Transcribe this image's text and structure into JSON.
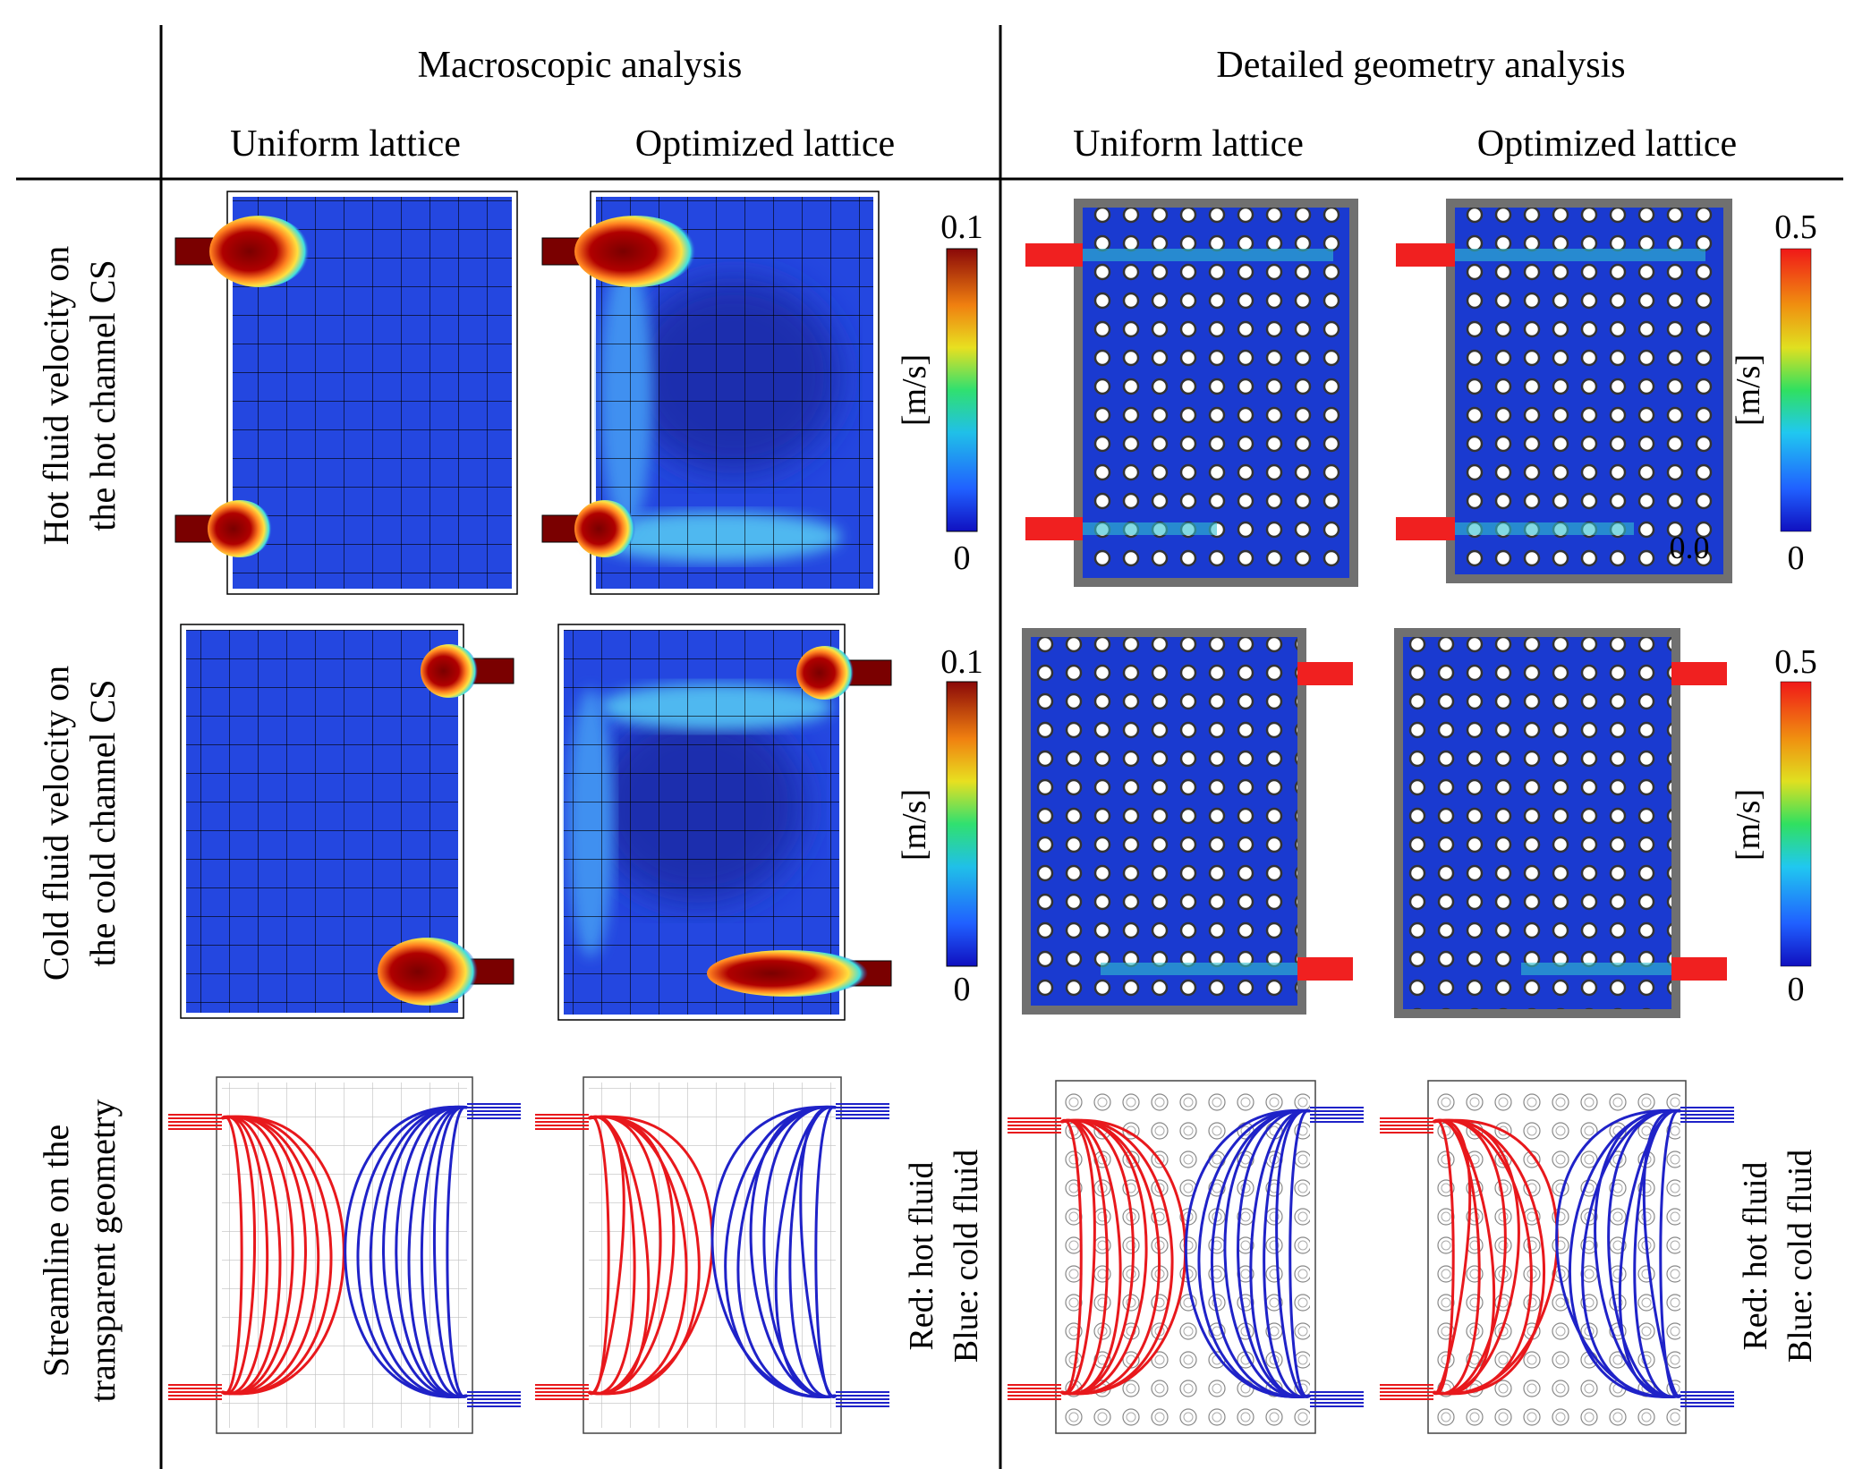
{
  "header": {
    "macro_title": "Macroscopic analysis",
    "detail_title": "Detailed geometry analysis",
    "col_uniform_1": "Uniform lattice",
    "col_optimized_1": "Optimized lattice",
    "col_uniform_2": "Uniform lattice",
    "col_optimized_2": "Optimized lattice"
  },
  "rows": {
    "hot_line1": "Hot fluid velocity on",
    "hot_line2": "the hot channel CS",
    "cold_line1": "Cold fluid velocity on",
    "cold_line2": "the cold channel CS",
    "stream_line1": "Streamline on the",
    "stream_line2": "transparent geometry"
  },
  "colorbars": {
    "macro_hot_max": "0.1",
    "macro_hot_min": "0",
    "macro_hot_unit": "[m/s]",
    "macro_cold_max": "0.1",
    "macro_cold_min": "0",
    "macro_cold_unit": "[m/s]",
    "detail_hot_max": "0.5",
    "detail_hot_min": "0",
    "detail_hot_unit": "[m/s]",
    "detail_cold_max": "0.5",
    "detail_cold_min": "0",
    "detail_cold_unit": "[m/s]",
    "detail_hot_overlap_label": "0.0"
  },
  "legends": {
    "red_1": "Red: hot fluid",
    "blue_1": "Blue: cold fluid",
    "red_2": "Red: hot fluid",
    "blue_2": "Blue: cold fluid"
  },
  "colors": {
    "hot": "#e8181c",
    "cold": "#1f22c8",
    "field_base": "#2244d8",
    "jet": "#7a0000"
  }
}
